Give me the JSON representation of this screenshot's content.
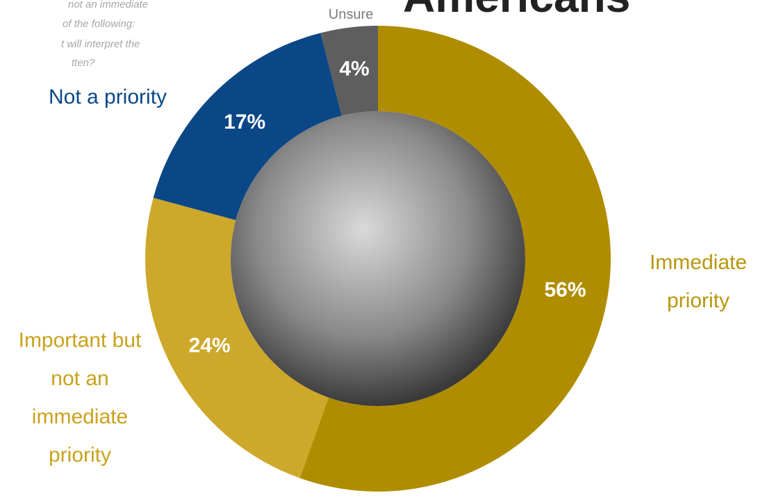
{
  "chart_data": {
    "type": "donut",
    "title": "Americans",
    "question": [
      "not an immediate",
      "of the following:",
      "t will interpret the",
      "tten?"
    ],
    "categories": [
      "Immediate priority",
      "Important but not an immediate priority",
      "Not a priority",
      "Unsure"
    ],
    "values": [
      56,
      24,
      17,
      4
    ],
    "value_labels": [
      "56%",
      "24%",
      "17%",
      "4%"
    ],
    "colors": [
      "#b08d00",
      "#cda82a",
      "#0b4786",
      "#5e5e5e"
    ],
    "label_colors": [
      "#b8960a",
      "#c9a21a",
      "#0b4786",
      "#7a7a7a"
    ]
  }
}
